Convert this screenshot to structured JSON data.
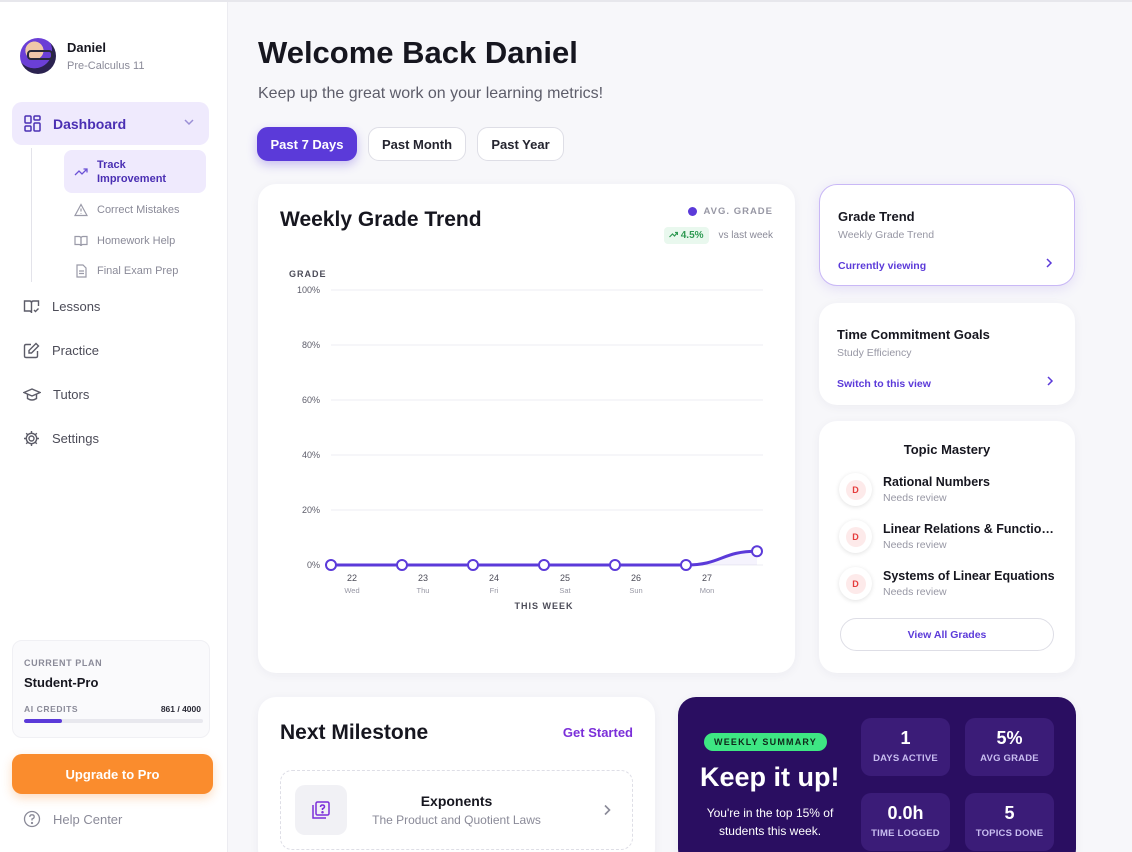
{
  "profile": {
    "name": "Daniel",
    "course": "Pre-Calculus 11"
  },
  "nav": {
    "dashboard": "Dashboard",
    "sub": {
      "track": "Track Improvement",
      "mistakes": "Correct Mistakes",
      "homework": "Homework Help",
      "exam": "Final Exam Prep"
    },
    "lessons": "Lessons",
    "practice": "Practice",
    "tutors": "Tutors",
    "settings": "Settings",
    "help": "Help Center"
  },
  "plan": {
    "label": "CURRENT PLAN",
    "name": "Student-Pro",
    "credits_label": "AI CREDITS",
    "credits_value": "861 / 4000",
    "credits_fraction": 0.215
  },
  "upgrade_label": "Upgrade to Pro",
  "header": {
    "title": "Welcome Back Daniel",
    "subtitle": "Keep up the great work on your learning metrics!"
  },
  "filters": [
    "Past 7 Days",
    "Past Month",
    "Past Year"
  ],
  "chart": {
    "title": "Weekly Grade Trend",
    "legend": "AVG. GRADE",
    "trend_value": "4.5%",
    "trend_text": "vs last week"
  },
  "chart_data": {
    "type": "line",
    "title": "Weekly Grade Trend",
    "ylabel": "GRADE",
    "xlabel": "THIS WEEK",
    "y_ticks": [
      "0%",
      "20%",
      "40%",
      "60%",
      "80%",
      "100%"
    ],
    "ylim": [
      0,
      100
    ],
    "categories": [
      {
        "day": "22",
        "weekday": "Wed"
      },
      {
        "day": "23",
        "weekday": "Thu"
      },
      {
        "day": "24",
        "weekday": "Fri"
      },
      {
        "day": "25",
        "weekday": "Sat"
      },
      {
        "day": "26",
        "weekday": "Sun"
      },
      {
        "day": "27",
        "weekday": "Mon"
      },
      {
        "day": "",
        "weekday": ""
      }
    ],
    "series": [
      {
        "name": "AVG. GRADE",
        "values": [
          0,
          0,
          0,
          0,
          0,
          0,
          5
        ]
      }
    ],
    "grid": true,
    "legend_position": "top-right",
    "color": "#5b3ad9"
  },
  "views": [
    {
      "title": "Grade Trend",
      "subtitle": "Weekly Grade Trend",
      "action": "Currently viewing"
    },
    {
      "title": "Time Commitment Goals",
      "subtitle": "Study Efficiency",
      "action": "Switch to this view"
    }
  ],
  "mastery": {
    "title": "Topic Mastery",
    "topics": [
      {
        "grade": "D",
        "name": "Rational Numbers",
        "status": "Needs review"
      },
      {
        "grade": "D",
        "name": "Linear Relations & Functions",
        "status": "Needs review"
      },
      {
        "grade": "D",
        "name": "Systems of Linear Equations",
        "status": "Needs review"
      }
    ],
    "view_all": "View All Grades"
  },
  "milestone": {
    "title": "Next Milestone",
    "link": "Get Started",
    "item_name": "Exponents",
    "item_sub": "The Product and Quotient Laws"
  },
  "summary": {
    "badge": "WEEKLY SUMMARY",
    "headline": "Keep it up!",
    "text": "You're in the top 15% of students this week.",
    "stats": [
      {
        "value": "1",
        "label": "DAYS ACTIVE"
      },
      {
        "value": "5%",
        "label": "AVG GRADE"
      },
      {
        "value": "0.0h",
        "label": "TIME LOGGED"
      },
      {
        "value": "5",
        "label": "TOPICS DONE"
      }
    ]
  }
}
